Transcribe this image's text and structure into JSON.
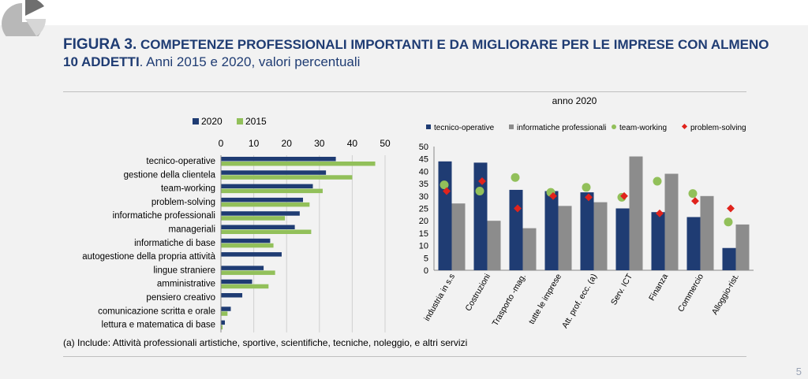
{
  "header": {
    "figure_label": "FIGURA 3.",
    "title_bold": " COMPETENZE PROFESSIONALI IMPORTANTI E DA MIGLIORARE PER LE IMPRESE CON ALMENO 10 ADDETTI",
    "title_rest": ". Anni 2015 e 2020, valori percentuali"
  },
  "footnote": "(a) Include: Attività professionali artistiche, sportive, scientifiche, tecniche, noleggio, e altri servizi",
  "page_number": "5",
  "colors": {
    "navy": "#1f3c73",
    "green": "#92c05a",
    "gray": "#8c8c8c",
    "red": "#e0231c",
    "title": "#1f3c73"
  },
  "chart_data": [
    {
      "type": "bar",
      "orientation": "horizontal",
      "categories": [
        "tecnico-operative",
        "gestione della clientela",
        "team-working",
        "problem-solving",
        "informatiche professionali",
        "manageriali",
        "informatiche di base",
        "autogestione della propria attività",
        "lingue straniere",
        "amministrative",
        "pensiero creativo",
        "comunicazione scritta e orale",
        "lettura e matematica di base"
      ],
      "series": [
        {
          "name": "2020",
          "values": [
            35,
            32,
            28,
            25,
            24,
            22.5,
            15,
            18.5,
            13,
            9.5,
            6.5,
            3,
            1.2
          ]
        },
        {
          "name": "2015",
          "values": [
            47,
            40,
            31,
            27,
            19.5,
            27.5,
            16,
            null,
            16.5,
            14.5,
            null,
            2,
            0.5
          ]
        }
      ],
      "xlim": [
        0,
        50
      ],
      "xticks": [
        0,
        10,
        20,
        30,
        40,
        50
      ],
      "legend": "top"
    },
    {
      "type": "bar",
      "title": "anno 2020",
      "categories": [
        "industria in s.s",
        "Costruzioni",
        "Trasporto -mag.",
        "tutte le imprese",
        "Att. prof. ecc. (a)",
        "Serv. ICT",
        "Finanza",
        "Commercio",
        "Alloggio-rist."
      ],
      "series": [
        {
          "name": "tecnico-operative",
          "kind": "bar",
          "values": [
            44,
            43.5,
            32.5,
            32,
            31.5,
            25,
            23.5,
            21.5,
            9
          ]
        },
        {
          "name": "informatiche professionali",
          "kind": "bar",
          "values": [
            27,
            20,
            17,
            26,
            27.5,
            46,
            39,
            30,
            18.5
          ]
        },
        {
          "name": "team-working",
          "kind": "marker",
          "values": [
            34.5,
            32,
            37.5,
            31.5,
            33.5,
            29.5,
            36,
            31,
            19.5
          ]
        },
        {
          "name": "problem-solving",
          "kind": "marker",
          "values": [
            32,
            36,
            25,
            30,
            29.5,
            30,
            23,
            28,
            25
          ]
        }
      ],
      "ylim": [
        0,
        50
      ],
      "yticks": [
        0,
        5,
        10,
        15,
        20,
        25,
        30,
        35,
        40,
        45,
        50
      ],
      "legend": "top"
    }
  ]
}
